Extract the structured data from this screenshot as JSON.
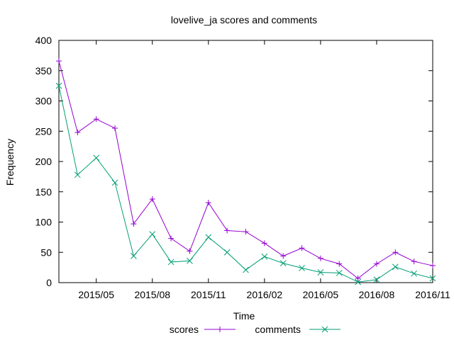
{
  "chart_data": {
    "type": "line",
    "title": "lovelive_ja scores and comments",
    "xlabel": "Time",
    "ylabel": "Frequency",
    "x": [
      "2015-03",
      "2015-04",
      "2015-05",
      "2015-06",
      "2015-07",
      "2015-08",
      "2015-09",
      "2015-10",
      "2015-11",
      "2015-12",
      "2016-01",
      "2016-02",
      "2016-03",
      "2016-04",
      "2016-05",
      "2016-06",
      "2016-07",
      "2016-08",
      "2016-09",
      "2016-10",
      "2016-11"
    ],
    "xlim": [
      "2015-03",
      "2016-11"
    ],
    "x_ticks": [
      {
        "value": "2015-05",
        "label": "2015/05"
      },
      {
        "value": "2015-08",
        "label": "2015/08"
      },
      {
        "value": "2015-11",
        "label": "2015/11"
      },
      {
        "value": "2016-02",
        "label": "2016/02"
      },
      {
        "value": "2016-05",
        "label": "2016/05"
      },
      {
        "value": "2016-08",
        "label": "2016/08"
      },
      {
        "value": "2016-11",
        "label": "2016/11"
      }
    ],
    "ylim": [
      0,
      400
    ],
    "y_ticks": [
      0,
      50,
      100,
      150,
      200,
      250,
      300,
      350,
      400
    ],
    "grid": false,
    "legend_position": "bottom",
    "series": [
      {
        "name": "scores",
        "color": "#9400d3",
        "marker": "plus",
        "values": [
          366,
          248,
          270,
          255,
          97,
          138,
          73,
          52,
          132,
          86,
          84,
          65,
          44,
          57,
          40,
          31,
          7,
          31,
          50,
          35,
          28
        ]
      },
      {
        "name": "comments",
        "color": "#009e73",
        "marker": "cross",
        "values": [
          325,
          178,
          206,
          165,
          44,
          80,
          34,
          36,
          75,
          50,
          21,
          43,
          32,
          24,
          17,
          16,
          1,
          5,
          26,
          15,
          7
        ]
      }
    ]
  }
}
